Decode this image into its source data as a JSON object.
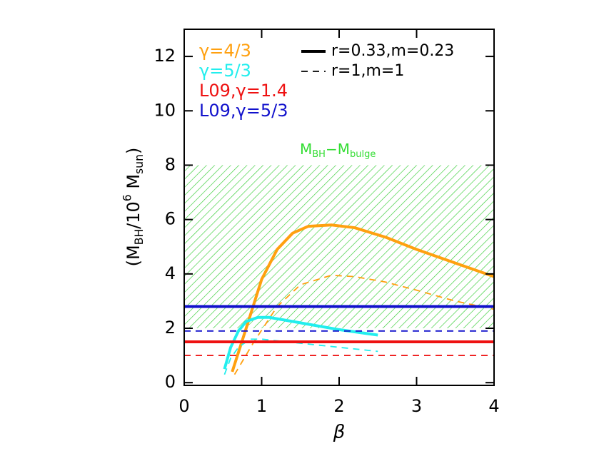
{
  "chart_data": {
    "type": "line",
    "xlabel": "β",
    "ylabel_parts": [
      {
        "text": "(M"
      },
      {
        "text": "BH",
        "sub": true
      },
      {
        "text": "/10"
      },
      {
        "text": "6",
        "sup": true
      },
      {
        "text": " M"
      },
      {
        "text": "sun",
        "sub": true
      },
      {
        "text": ")"
      }
    ],
    "xlim": [
      0,
      4
    ],
    "xticks": [
      0,
      1,
      2,
      3,
      4
    ],
    "ylim": [
      -0.1,
      13
    ],
    "yticks": [
      0,
      2,
      4,
      6,
      8,
      10,
      12
    ],
    "band": {
      "ymin": 2,
      "ymax": 8,
      "color": "#33cc33"
    },
    "band_label_parts": [
      {
        "text": "M"
      },
      {
        "text": "BH",
        "sub": true
      },
      {
        "text": "−M"
      },
      {
        "text": "bulge",
        "sub": true
      }
    ],
    "band_label_color": "#33dd33",
    "legend_colors": [
      {
        "label": "γ=4/3",
        "color": "#ffa010"
      },
      {
        "label": "γ=5/3",
        "color": "#22eeee"
      },
      {
        "label": "L09,γ=1.4",
        "color": "#ee1111"
      },
      {
        "label": "L09,γ=5/3",
        "color": "#1111cc"
      }
    ],
    "legend_styles": [
      {
        "label": "r=0.33,m=0.23",
        "dash": "solid"
      },
      {
        "label": "r=1,m=1",
        "dash": "dashed"
      }
    ],
    "series": [
      {
        "color": "#ffa010",
        "dash": "solid",
        "x": [
          0.62,
          0.8,
          1.0,
          1.2,
          1.4,
          1.6,
          1.9,
          2.2,
          2.6,
          3.0,
          3.5,
          4.0
        ],
        "values": [
          0.4,
          2.0,
          3.8,
          4.9,
          5.5,
          5.75,
          5.8,
          5.7,
          5.35,
          4.9,
          4.4,
          3.9
        ]
      },
      {
        "color": "#ffa010",
        "dash": "dashed",
        "x": [
          0.65,
          0.9,
          1.2,
          1.5,
          1.9,
          2.2,
          2.6,
          3.0,
          3.5,
          4.0
        ],
        "values": [
          0.3,
          1.5,
          2.8,
          3.6,
          3.95,
          3.9,
          3.7,
          3.4,
          3.0,
          2.7
        ]
      },
      {
        "color": "#22eeee",
        "dash": "solid",
        "x": [
          0.52,
          0.6,
          0.7,
          0.8,
          0.95,
          1.1,
          1.5,
          2.0,
          2.5
        ],
        "values": [
          0.5,
          1.3,
          1.9,
          2.25,
          2.4,
          2.4,
          2.2,
          1.95,
          1.75
        ]
      },
      {
        "color": "#22eeee",
        "dash": "dashed",
        "x": [
          0.52,
          0.6,
          0.7,
          0.85,
          1.0,
          1.5,
          2.0,
          2.5
        ],
        "values": [
          0.3,
          0.9,
          1.3,
          1.6,
          1.6,
          1.45,
          1.3,
          1.15
        ]
      },
      {
        "color": "#1111cc",
        "dash": "solid",
        "x": [
          0,
          4
        ],
        "values": [
          2.8,
          2.8
        ]
      },
      {
        "color": "#1111cc",
        "dash": "dashed",
        "x": [
          0,
          4
        ],
        "values": [
          1.9,
          1.9
        ]
      },
      {
        "color": "#ee1111",
        "dash": "solid",
        "x": [
          0,
          4
        ],
        "values": [
          1.5,
          1.5
        ]
      },
      {
        "color": "#ee1111",
        "dash": "dashed",
        "x": [
          0,
          4
        ],
        "values": [
          1.0,
          1.0
        ]
      }
    ]
  }
}
